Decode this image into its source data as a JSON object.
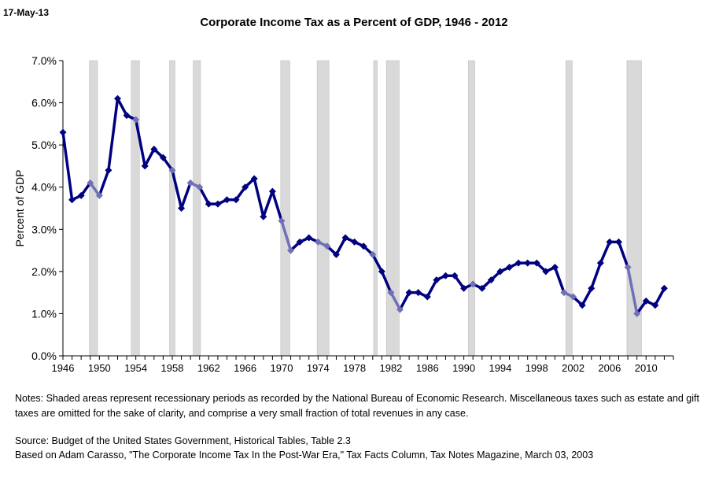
{
  "header": {
    "date": "17-May-13",
    "title": "Corporate Income Tax as a Percent of GDP, 1946 - 2012"
  },
  "footer": {
    "notes": "Notes:  Shaded areas represent recessionary periods as recorded by the National Bureau of Economic Research.  Miscellaneous taxes such as estate and gift taxes are omitted for the sake of clarity, and comprise a very small fraction of total revenues in any case.",
    "source_line1": "Source:  Budget of the United States Government, Historical Tables, Table 2.3",
    "source_line2": "Based on Adam Carasso, \"The Corporate Income Tax In the Post-War Era,\" Tax Facts Column, Tax Notes Magazine, March 03, 2003"
  },
  "chart_data": {
    "type": "line",
    "title": "Corporate Income Tax as a Percent of GDP, 1946 - 2012",
    "xlabel": "",
    "ylabel": "Percent of GDP",
    "xlim": [
      1946,
      2013
    ],
    "ylim": [
      0,
      7
    ],
    "x_ticks": [
      "1946",
      "1950",
      "1954",
      "1958",
      "1962",
      "1966",
      "1970",
      "1974",
      "1978",
      "1982",
      "1986",
      "1990",
      "1994",
      "1998",
      "2002",
      "2006",
      "2010"
    ],
    "y_ticks": [
      "0.0%",
      "1.0%",
      "2.0%",
      "3.0%",
      "4.0%",
      "5.0%",
      "6.0%",
      "7.0%"
    ],
    "grid": false,
    "colors": {
      "line": "#000080",
      "recession_line": "#7070B8",
      "recession_fill": "#D9D9D9"
    },
    "recessions": [
      [
        1948.9,
        1949.8
      ],
      [
        1953.5,
        1954.4
      ],
      [
        1957.7,
        1958.3
      ],
      [
        1960.3,
        1961.1
      ],
      [
        1969.9,
        1970.9
      ],
      [
        1973.9,
        1975.2
      ],
      [
        1980.1,
        1980.5
      ],
      [
        1981.5,
        1982.9
      ],
      [
        1990.5,
        1991.2
      ],
      [
        2001.2,
        2001.9
      ],
      [
        2007.9,
        2009.5
      ]
    ],
    "series": [
      {
        "x": [
          1946,
          1947,
          1948,
          1949,
          1950,
          1951,
          1952,
          1953,
          1954,
          1955,
          1956,
          1957,
          1958,
          1959,
          1960,
          1961,
          1962,
          1963,
          1964,
          1965,
          1966,
          1967,
          1968,
          1969,
          1970,
          1971,
          1972,
          1973,
          1974,
          1975,
          1976,
          1977,
          1978,
          1979,
          1980,
          1981,
          1982,
          1983,
          1984,
          1985,
          1986,
          1987,
          1988,
          1989,
          1990,
          1991,
          1992,
          1993,
          1994,
          1995,
          1996,
          1997,
          1998,
          1999,
          2000,
          2001,
          2002,
          2003,
          2004,
          2005,
          2006,
          2007,
          2008,
          2009,
          2010,
          2011,
          2012
        ],
        "values": [
          5.3,
          3.7,
          3.8,
          4.1,
          3.8,
          4.4,
          6.1,
          5.7,
          5.6,
          4.5,
          4.9,
          4.7,
          4.4,
          3.5,
          4.1,
          4.0,
          3.6,
          3.6,
          3.7,
          3.7,
          4.0,
          4.2,
          3.3,
          3.9,
          3.2,
          2.5,
          2.7,
          2.8,
          2.7,
          2.6,
          2.4,
          2.8,
          2.7,
          2.6,
          2.4,
          2.0,
          1.5,
          1.1,
          1.5,
          1.5,
          1.4,
          1.8,
          1.9,
          1.9,
          1.6,
          1.7,
          1.6,
          1.8,
          2.0,
          2.1,
          2.2,
          2.2,
          2.2,
          2.0,
          2.1,
          1.5,
          1.4,
          1.2,
          1.6,
          2.2,
          2.7,
          2.7,
          2.1,
          1.0,
          1.3,
          1.2,
          1.6
        ]
      }
    ]
  }
}
